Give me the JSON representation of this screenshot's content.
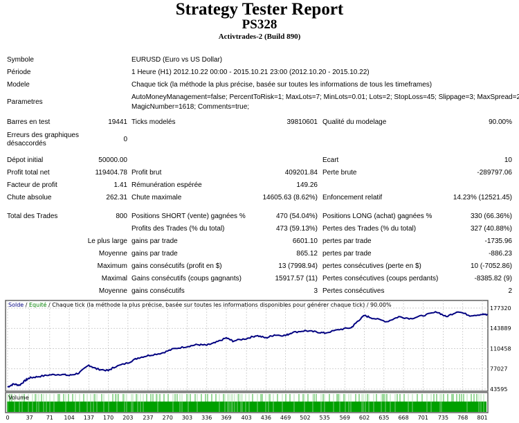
{
  "header": {
    "title": "Strategy Tester Report",
    "subtitle": "PS328",
    "broker": "Activtrades-2 (Build 890)"
  },
  "info": {
    "symbol_label": "Symbole",
    "symbol": "EURUSD (Euro vs US Dollar)",
    "period_label": "Période",
    "period": "1 Heure (H1) 2012.10.22 00:00 - 2015.10.21 23:00 (2012.10.20 - 2015.10.22)",
    "model_label": "Modele",
    "model": "Chaque tick (la méthode la plus précise, basée sur toutes les informations de tous les timeframes)",
    "params_label": "Parametres",
    "params_line1": "AutoMoneyManagement=false; PercentToRisk=1; MaxLots=7; MinLots=0.01; Lots=2; StopLoss=45; Slippage=3; MaxSpread=2;",
    "params_line2": "MagicNumber=1618; Comments=true;"
  },
  "rows": [
    {
      "l1": "Barres en test",
      "v1": "19441",
      "l2": "Ticks modelés",
      "v2": "39810601",
      "l3": "Qualité du modelage",
      "v3": "90.00%"
    },
    {
      "l1a": "Erreurs des graphiques",
      "l1b": "désaccordés",
      "v1": "0"
    },
    {
      "l1": "Dépot initial",
      "v1": "50000.00",
      "l3": "Ecart",
      "v3": "10"
    },
    {
      "l1": "Profit total net",
      "v1": "119404.78",
      "l2": "Profit brut",
      "v2": "409201.84",
      "l3": "Perte brute",
      "v3": "-289797.06"
    },
    {
      "l1": "Facteur de profit",
      "v1": "1.41",
      "l2": "Rémunération espérée",
      "v2": "149.26"
    },
    {
      "l1": "Chute absolue",
      "v1": "262.31",
      "l2": "Chute maximale",
      "v2": "14605.63 (8.62%)",
      "l3": "Enfoncement relatif",
      "v3": "14.23% (12521.45)"
    },
    {
      "l1": "Total des Trades",
      "v1": "800",
      "l2": "Positions SHORT (vente) gagnées %",
      "v2": "470 (54.04%)",
      "l3": "Positions LONG (achat) gagnées %",
      "v3": "330 (66.36%)"
    },
    {
      "l2": "Profits des Trades (% du total)",
      "v2": "473 (59.13%)",
      "l3": "Pertes des Trades (% du total)",
      "v3": "327 (40.88%)"
    },
    {
      "v1": "Le plus large",
      "l2": "gains par trade",
      "v2": "6601.10",
      "l3": "pertes par trade",
      "v3": "-1735.96"
    },
    {
      "v1": "Moyenne",
      "l2": "gains par trade",
      "v2": "865.12",
      "l3": "pertes par trade",
      "v3": "-886.23"
    },
    {
      "v1": "Maximum",
      "l2": "gains consécutifs (profit en $)",
      "v2": "13 (7998.94)",
      "l3": "pertes consécutives (perte en $)",
      "v3": "10 (-7052.86)"
    },
    {
      "v1": "Maximal",
      "l2": "Gains consécutifs (coups gagnants)",
      "v2": "15917.57 (11)",
      "l3": "Pertes consécutives (coups perdants)",
      "v3": "-8385.82 (9)"
    },
    {
      "v1": "Moyenne",
      "l2": "gains consécutifs",
      "v2": "3",
      "l3": "Pertes consécutives",
      "v3": "2"
    }
  ],
  "chart_data": {
    "type": "line",
    "legend_solde": "Solde",
    "legend_sep1": " / ",
    "legend_equite": "Equité",
    "legend_rest": " / Chaque tick (la méthode la plus précise, basée sur toutes les informations disponibles pour générer chaque tick) / 90.00%",
    "volume_label": "Volume",
    "colors": {
      "balance": "#000080",
      "equity": "#008000",
      "volume": "#00a000",
      "grid": "#c0c0c0"
    },
    "ylim": [
      43595,
      177320
    ],
    "y_ticks": [
      "177320",
      "143889",
      "110458",
      "77027",
      "43595"
    ],
    "x_ticks": [
      "0",
      "37",
      "71",
      "104",
      "137",
      "170",
      "203",
      "237",
      "270",
      "303",
      "336",
      "369",
      "403",
      "436",
      "469",
      "502",
      "535",
      "569",
      "602",
      "635",
      "668",
      "701",
      "735",
      "768",
      "801"
    ],
    "grid": true,
    "series": [
      {
        "x": [
          0,
          10,
          20,
          30,
          37,
          50,
          71,
          90,
          104,
          120,
          137,
          150,
          170,
          180,
          203,
          220,
          237,
          260,
          280,
          303,
          320,
          336,
          350,
          369,
          380,
          403,
          420,
          436,
          450,
          469,
          480,
          502,
          520,
          535,
          560,
          580,
          590,
          602,
          615,
          640,
          660,
          680,
          701,
          725,
          740,
          760,
          780,
          801,
          810
        ],
        "y": [
          47000,
          52000,
          50000,
          58000,
          62000,
          64000,
          67000,
          68000,
          66000,
          70000,
          83000,
          77000,
          74000,
          80000,
          87000,
          95000,
          99000,
          103000,
          110000,
          114000,
          117000,
          116000,
          120000,
          128000,
          123000,
          127000,
          132000,
          128000,
          133000,
          132000,
          137000,
          140000,
          138000,
          136000,
          142000,
          145000,
          155000,
          165000,
          161000,
          155000,
          163000,
          160000,
          165000,
          171000,
          163000,
          172000,
          165000,
          167000,
          166000
        ]
      }
    ]
  }
}
